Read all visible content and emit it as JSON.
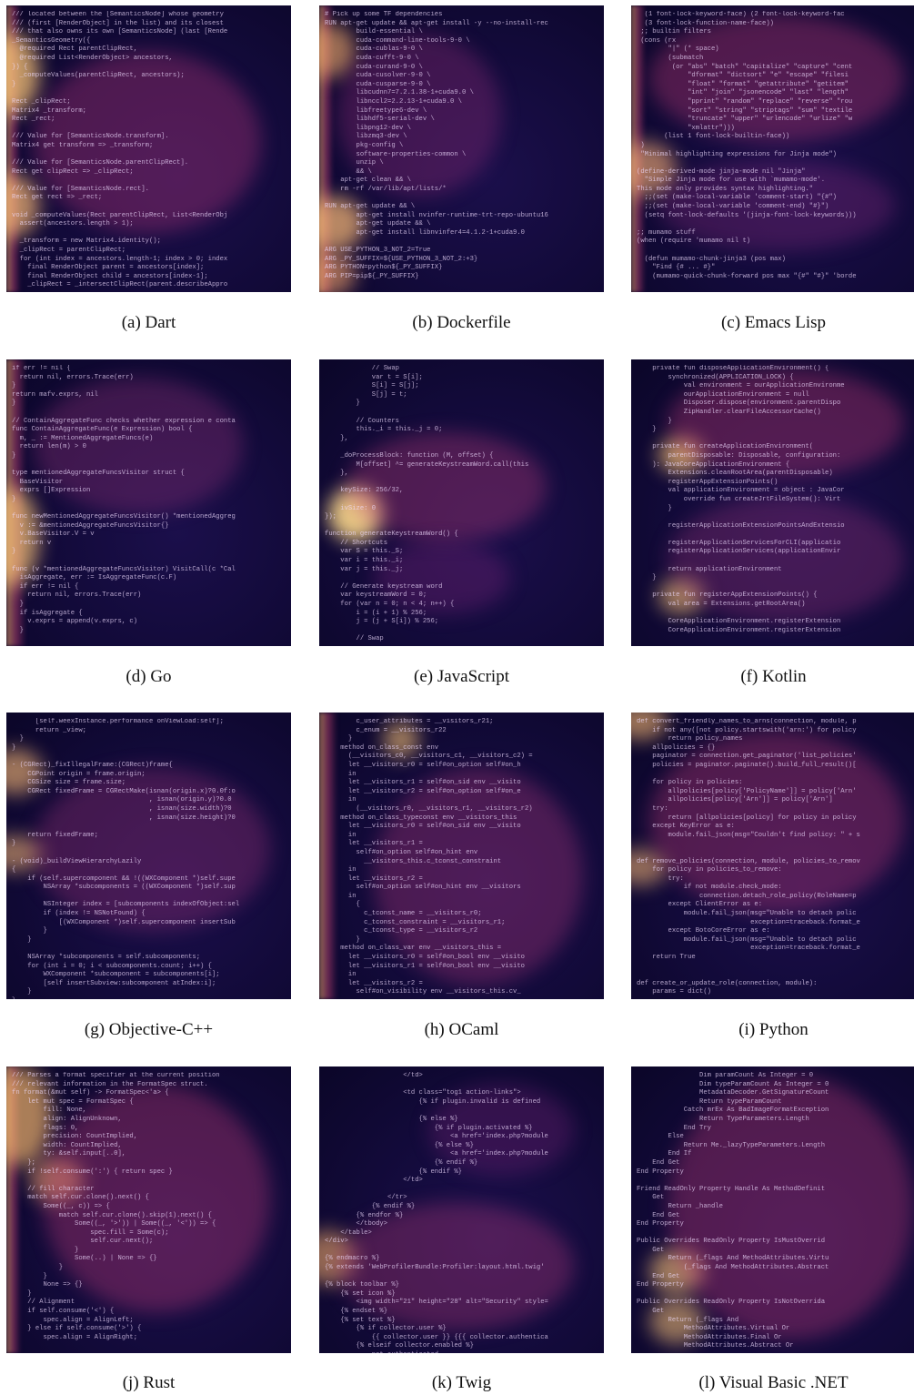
{
  "panels": [
    {
      "caption": "(a)  Dart",
      "code": "/// located between the [SemanticsNode] whose geometry\n/// (first [RenderObject] in the list) and its closest\n/// that also owns its own [SemanticsNode] (last [Rende\n_SemanticsGeometry({\n  @required Rect parentClipRect,\n  @required List<RenderObject> ancestors,\n}) {\n  _computeValues(parentClipRect, ancestors);\n}\n\nRect _clipRect;\nMatrix4 _transform;\nRect _rect;\n\n/// Value for [SemanticsNode.transform].\nMatrix4 get transform => _transform;\n\n/// Value for [SemanticsNode.parentClipRect].\nRect get clipRect => _clipRect;\n\n/// Value for [SemanticsNode.rect].\nRect get rect => _rect;\n\nvoid _computeValues(Rect parentClipRect, List<RenderObj\n  assert(ancestors.length > 1);\n\n  _transform = new Matrix4.identity();\n  _clipRect = parentClipRect;\n  for (int index = ancestors.length-1; index > 0; index\n    final RenderObject parent = ancestors[index];\n    final RenderObject child = ancestors[index-1];\n    _clipRect = _intersectClipRect(parent.describeAppro"
    },
    {
      "caption": "(b)  Dockerfile",
      "code": "# Pick up some TF dependencies\nRUN apt-get update && apt-get install -y --no-install-rec\n        build-essential \\\n        cuda-command-line-tools-9-0 \\\n        cuda-cublas-9-0 \\\n        cuda-cufft-9-0 \\\n        cuda-curand-9-0 \\\n        cuda-cusolver-9-0 \\\n        cuda-cusparse-9-0 \\\n        libcudnn7=7.2.1.38-1+cuda9.0 \\\n        libnccl2=2.2.13-1+cuda9.0 \\\n        libfreetype6-dev \\\n        libhdf5-serial-dev \\\n        libpng12-dev \\\n        libzmq3-dev \\\n        pkg-config \\\n        software-properties-common \\\n        unzip \\\n        && \\\n    apt-get clean && \\\n    rm -rf /var/lib/apt/lists/*\n\nRUN apt-get update && \\\n        apt-get install nvinfer-runtime-trt-repo-ubuntu16\n        apt-get update && \\\n        apt-get install libnvinfer4=4.1.2-1+cuda9.0\n\nARG USE_PYTHON_3_NOT_2=True\nARG _PY_SUFFIX=${USE_PYTHON_3_NOT_2:+3}\nARG PYTHON=python${_PY_SUFFIX}\nARG PIP=pip${_PY_SUFFIX}"
    },
    {
      "caption": "(c)  Emacs Lisp",
      "code": "  (1 font-lock-keyword-face) (2 font-lock-keyword-fac\n  (3 font-lock-function-name-face))\n ;; builtin filters\n (cons (rx\n        \"|\" (* space)\n        (submatch\n         (or \"abs\" \"batch\" \"capitalize\" \"capture\" \"cent\n             \"dformat\" \"dictsort\" \"e\" \"escape\" \"filesi\n             \"float\" \"format\" \"getattribute\" \"getitem\"\n             \"int\" \"join\" \"jsonencode\" \"last\" \"length\"\n             \"pprint\" \"random\" \"replace\" \"reverse\" \"rou\n             \"sort\" \"string\" \"striptags\" \"sum\" \"textile\n             \"truncate\" \"upper\" \"urlencode\" \"urlize\" \"w\n             \"xmlattr\")))\n       (list 1 font-lock-builtin-face))\n )\n \"Minimal highlighting expressions for Jinja mode\")\n\n(define-derived-mode jinja-mode nil \"Jinja\"\n  \"Simple Jinja mode for use with `mumamo-mode'.\nThis mode only provides syntax highlighting.\"\n  ;;(set (make-local-variable 'comment-start) \"{#\")\n  ;;(set (make-local-variable 'comment-end) \"#}\")\n  (setq font-lock-defaults '(jinja-font-lock-keywords)))\n\n;; mumamo stuff\n(when (require 'mumamo nil t)\n\n  (defun mumamo-chunk-jinja3 (pos max)\n    \"Find {# ... #}\"\n    (mumamo-quick-chunk-forward pos max \"{#\" \"#}\" 'borde"
    },
    {
      "caption": "(d)  Go",
      "code": "if err != nil {\n  return nil, errors.Trace(err)\n}\nreturn mafv.exprs, nil\n}\n\n// ContainAggregateFunc checks whether expression e conta\nfunc ContainAggregateFunc(e Expression) bool {\n  m, _ := MentionedAggregateFuncs(e)\n  return len(m) > 0\n}\n\ntype mentionedAggregateFuncsVisitor struct {\n  BaseVisitor\n  exprs []Expression\n}\n\nfunc newMentionedAggregateFuncsVisitor() *mentionedAggreg\n  v := &mentionedAggregateFuncsVisitor{}\n  v.BaseVisitor.V = v\n  return v\n}\n\nfunc (v *mentionedAggregateFuncsVisitor) VisitCall(c *Cal\n  isAggregate, err := IsAggregateFunc(c.F)\n  if err != nil {\n    return nil, errors.Trace(err)\n  }\n  if isAggregate {\n    v.exprs = append(v.exprs, c)\n  }"
    },
    {
      "caption": "(e)  JavaScript",
      "code": "            // Swap\n            var t = S[i];\n            S[i] = S[j];\n            S[j] = t;\n        }\n\n        // Counters\n        this._i = this._j = 0;\n    },\n\n    _doProcessBlock: function (M, offset) {\n        M[offset] ^= generateKeystreamWord.call(this\n    },\n\n    keySize: 256/32,\n\n    ivSize: 0\n});\n\nfunction generateKeystreamWord() {\n    // Shortcuts\n    var S = this._S;\n    var i = this._i;\n    var j = this._j;\n\n    // Generate keystream word\n    var keystreamWord = 0;\n    for (var n = 0; n < 4; n++) {\n        i = (i + 1) % 256;\n        j = (j + S[i]) % 256;\n\n        // Swap"
    },
    {
      "caption": "(f)  Kotlin",
      "code": "    private fun disposeApplicationEnvironment() {\n        synchronized(APPLICATION_LOCK) {\n            val environment = ourApplicationEnvironme\n            ourApplicationEnvironment = null\n            Disposer.dispose(environment.parentDispo\n            ZipHandler.clearFileAccessorCache()\n        }\n    }\n\n    private fun createApplicationEnvironment(\n        parentDisposable: Disposable, configuration:\n    ): JavaCoreApplicationEnvironment {\n        Extensions.cleanRootArea(parentDisposable)\n        registerAppExtensionPoints()\n        val applicationEnvironment = object : JavaCor\n            override fun createJrtFileSystem(): Virt\n        }\n\n        registerApplicationExtensionPointsAndExtensio\n\n        registerApplicationServicesForCLI(applicatio\n        registerApplicationServices(applicationEnvir\n\n        return applicationEnvironment\n    }\n\n    private fun registerAppExtensionPoints() {\n        val area = Extensions.getRootArea()\n\n        CoreApplicationEnvironment.registerExtension\n        CoreApplicationEnvironment.registerExtension"
    },
    {
      "caption": "(g)  Objective-C++",
      "code": "      [self.weexInstance.performance onViewLoad:self];\n      return _view;\n  }\n}\n\n- (CGRect)_fixIllegalFrame:(CGRect)frame{\n    CGPoint origin = frame.origin;\n    CGSize size = frame.size;\n    CGRect fixedFrame = CGRectMake(isnan(origin.x)?0.0f:o\n                                   , isnan(origin.y)?0.0\n                                   , isnan(size.width)?0\n                                   , isnan(size.height)?0\n\n    return fixedFrame;\n}\n\n- (void)_buildViewHierarchyLazily\n{\n    if (self.supercomponent && !((WXComponent *)self.supe\n        NSArray *subcomponents = ((WXComponent *)self.sup\n\n        NSInteger index = [subcomponents indexOfObject:sel\n        if (index != NSNotFound) {\n            [(WXComponent *)self.supercomponent insertSub\n        }\n    }\n\n    NSArray *subcomponents = self.subcomponents;\n    for (int i = 0; i < subcomponents.count; i++) {\n        WXComponent *subcomponent = subcomponents[i];\n        [self insertSubview:subcomponent atIndex:i];\n    }\n}"
    },
    {
      "caption": "(h)  OCaml",
      "code": "        c_user_attributes = __visitors_r21;\n        c_enum = __visitors_r22\n      }\n    method on_class_const env\n      (__visitors_c0, __visitors_c1, __visitors_c2) =\n      let __visitors_r0 = self#on_option self#on_h\n      in\n      let __visitors_r1 = self#on_sid env __visito\n      let __visitors_r2 = self#on_option self#on_e\n      in\n        (__visitors_r0, __visitors_r1, __visitors_r2)\n    method on_class_typeconst env __visitors_this\n      let __visitors_r0 = self#on_sid env __visito\n      in\n      let __visitors_r1 =\n        self#on_option self#on_hint env\n          __visitors_this.c_tconst_constraint\n      in\n      let __visitors_r2 =\n        self#on_option self#on_hint env __visitors\n      in\n        {\n          c_tconst_name = __visitors_r0;\n          c_tconst_constraint = __visitors_r1;\n          c_tconst_type = __visitors_r2\n        }\n    method on_class_var env __visitors_this =\n      let __visitors_r0 = self#on_bool env __visito\n      let __visitors_r1 = self#on_bool env __visito\n      in\n      let __visitors_r2 =\n        self#on_visibility env __visitors_this.cv_"
    },
    {
      "caption": "(i)  Python",
      "code": "def convert_friendly_names_to_arns(connection, module, p\n    if not any([not policy.startswith('arn:') for policy\n        return policy_names\n    allpolicies = {}\n    paginator = connection.get_paginator('list_policies'\n    policies = paginator.paginate().build_full_result()[\n\n    for policy in policies:\n        allpolicies[policy['PolicyName']] = policy['Arn'\n        allpolicies[policy['Arn']] = policy['Arn']\n    try:\n        return [allpolicies[policy] for policy in policy\n    except KeyError as e:\n        module.fail_json(msg=\"Couldn't find policy: \" + s\n\n\ndef remove_policies(connection, module, policies_to_remov\n    for policy in policies_to_remove:\n        try:\n            if not module.check_mode:\n                connection.detach_role_policy(RoleName=p\n        except ClientError as e:\n            module.fail_json(msg=\"Unable to detach polic\n                             exception=traceback.format_e\n        except BotoCoreError as e:\n            module.fail_json(msg=\"Unable to detach polic\n                             exception=traceback.format_e\n    return True\n\n\ndef create_or_update_role(connection, module):\n    params = dict()"
    },
    {
      "caption": "(j)  Rust",
      "code": "/// Parses a format specifier at the current position\n/// relevant information in the FormatSpec struct.\nfn format(&mut self) -> FormatSpec<'a> {\n    let mut spec = FormatSpec {\n        fill: None,\n        align: AlignUnknown,\n        flags: 0,\n        precision: CountImplied,\n        width: CountImplied,\n        ty: &self.input[..0],\n    };\n    if !self.consume(':') { return spec }\n\n    // fill character\n    match self.cur.clone().next() {\n        Some((_, c)) => {\n            match self.cur.clone().skip(1).next() {\n                Some((_, '>')) | Some((_, '<')) => {\n                    spec.fill = Some(c);\n                    self.cur.next();\n                }\n                Some(..) | None => {}\n            }\n        }\n        None => {}\n    }\n    // Alignment\n    if self.consume('<') {\n        spec.align = AlignLeft;\n    } else if self.consume('>') {\n        spec.align = AlignRight;"
    },
    {
      "caption": "(k)  Twig",
      "code": "                    </td>\n\n                    <td class=\"tog1 action-links\">\n                        {% if plugin.invalid is defined\n                        \n                        {% else %}\n                            {% if plugin.activated %}\n                                <a href='index.php?module\n                            {% else %}\n                                <a href='index.php?module\n                            {% endif %}\n                        {% endif %}\n                    </td>\n\n                </tr>\n            {% endif %}\n        {% endfor %}\n        </tbody>\n    </table>\n</div>\n\n{% endmacro %}\n{% extends 'WebProfilerBundle:Profiler:layout.html.twig'\n\n{% block toolbar %}\n    {% set icon %}\n        <img width=\"21\" height=\"28\" alt=\"Security\" style=\n    {% endset %}\n    {% set text %}\n        {% if collector.user %}\n            {{ collector.user }} {{{ collector.authentica\n        {% elseif collector.enabled %}\n            not authenticated"
    },
    {
      "caption": "(l)  Visual Basic .NET",
      "code": "                Dim paramCount As Integer = 0\n                Dim typeParamCount As Integer = 0\n                MetadataDecoder.GetSignatureCount\n                Return typeParamCount\n            Catch mrEx As BadImageFormatException\n                Return TypeParameters.Length\n            End Try\n        Else\n            Return Me._lazyTypeParameters.Length\n        End If\n    End Get\nEnd Property\n\nFriend ReadOnly Property Handle As MethodDefinit\n    Get\n        Return _handle\n    End Get\nEnd Property\n\nPublic Overrides ReadOnly Property IsMustOverrid\n    Get\n        Return (_flags And MethodAttributes.Virtu\n            (_flags And MethodAttributes.Abstract\n    End Get\nEnd Property\n\nPublic Overrides ReadOnly Property IsNotOverrida\n    Get\n        Return (_flags And\n            MethodAttributes.Virtual Or\n            MethodAttributes.Final Or\n            MethodAttributes.Abstract Or"
    }
  ]
}
